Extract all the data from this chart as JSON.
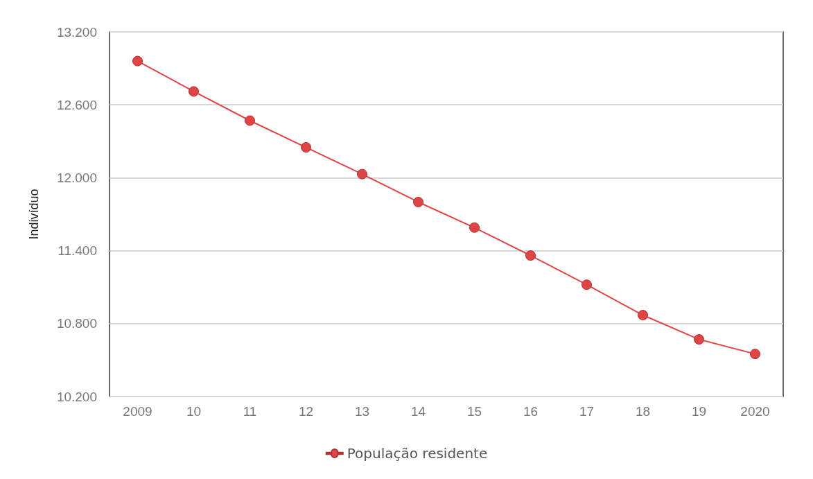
{
  "chart_data": {
    "type": "line",
    "ylabel": "Indivíduo",
    "categories": [
      "2009",
      "10",
      "11",
      "12",
      "13",
      "14",
      "15",
      "16",
      "17",
      "18",
      "19",
      "2020"
    ],
    "series": [
      {
        "name": "População residente",
        "color": "#e04545",
        "values": [
          12960,
          12710,
          12470,
          12250,
          12030,
          11800,
          11590,
          11360,
          11120,
          10870,
          10670,
          10550
        ]
      }
    ],
    "ylim": [
      10200,
      13200
    ],
    "yticks": [
      {
        "value": 10200,
        "label": "10.200"
      },
      {
        "value": 10800,
        "label": "10.800"
      },
      {
        "value": 11400,
        "label": "11.400"
      },
      {
        "value": 12000,
        "label": "12.000"
      },
      {
        "value": 12600,
        "label": "12.600"
      },
      {
        "value": 13200,
        "label": "13.200"
      }
    ],
    "grid": "y",
    "legend": "bottom",
    "marker": "circle",
    "line_style": "solid"
  }
}
